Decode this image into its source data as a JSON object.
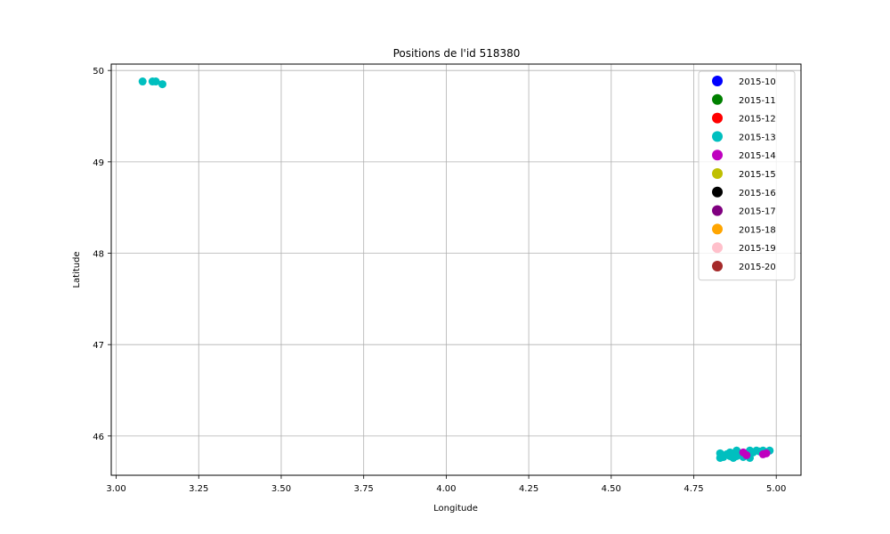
{
  "chart_data": {
    "type": "scatter",
    "title": "Positions de l'id 518380",
    "xlabel": "Longitude",
    "ylabel": "Latitude",
    "xlim": [
      2.985,
      5.075
    ],
    "ylim": [
      45.57,
      50.07
    ],
    "xticks": [
      "3.00",
      "3.25",
      "3.50",
      "3.75",
      "4.00",
      "4.25",
      "4.50",
      "4.75",
      "5.00"
    ],
    "yticks": [
      "46",
      "47",
      "48",
      "49",
      "50"
    ],
    "grid": true,
    "legend_position": "top-right",
    "series": [
      {
        "name": "2015-10",
        "color": "#0000ff",
        "points": []
      },
      {
        "name": "2015-11",
        "color": "#008000",
        "points": []
      },
      {
        "name": "2015-12",
        "color": "#ff0000",
        "points": []
      },
      {
        "name": "2015-13",
        "color": "#00bfbf",
        "points": [
          [
            3.08,
            49.88
          ],
          [
            3.11,
            49.88
          ],
          [
            3.12,
            49.88
          ],
          [
            3.14,
            49.85
          ],
          [
            4.83,
            45.81
          ],
          [
            4.83,
            45.76
          ],
          [
            4.84,
            45.77
          ],
          [
            4.85,
            45.8
          ],
          [
            4.86,
            45.78
          ],
          [
            4.87,
            45.76
          ],
          [
            4.88,
            45.84
          ],
          [
            4.88,
            45.78
          ],
          [
            4.89,
            45.81
          ],
          [
            4.9,
            45.77
          ],
          [
            4.91,
            45.8
          ],
          [
            4.92,
            45.84
          ],
          [
            4.93,
            45.82
          ],
          [
            4.94,
            45.84
          ],
          [
            4.95,
            45.83
          ],
          [
            4.96,
            45.84
          ],
          [
            4.97,
            45.82
          ],
          [
            4.98,
            45.84
          ],
          [
            4.92,
            45.76
          ],
          [
            4.86,
            45.82
          ]
        ]
      },
      {
        "name": "2015-14",
        "color": "#bf00bf",
        "points": [
          [
            4.9,
            45.82
          ],
          [
            4.91,
            45.79
          ],
          [
            4.96,
            45.8
          ],
          [
            4.97,
            45.81
          ]
        ]
      },
      {
        "name": "2015-15",
        "color": "#bfbf00",
        "points": []
      },
      {
        "name": "2015-16",
        "color": "#000000",
        "points": []
      },
      {
        "name": "2015-17",
        "color": "#800080",
        "points": []
      },
      {
        "name": "2015-18",
        "color": "#ffa500",
        "points": []
      },
      {
        "name": "2015-19",
        "color": "#ffc0cb",
        "points": []
      },
      {
        "name": "2015-20",
        "color": "#a52a2a",
        "points": []
      }
    ]
  }
}
